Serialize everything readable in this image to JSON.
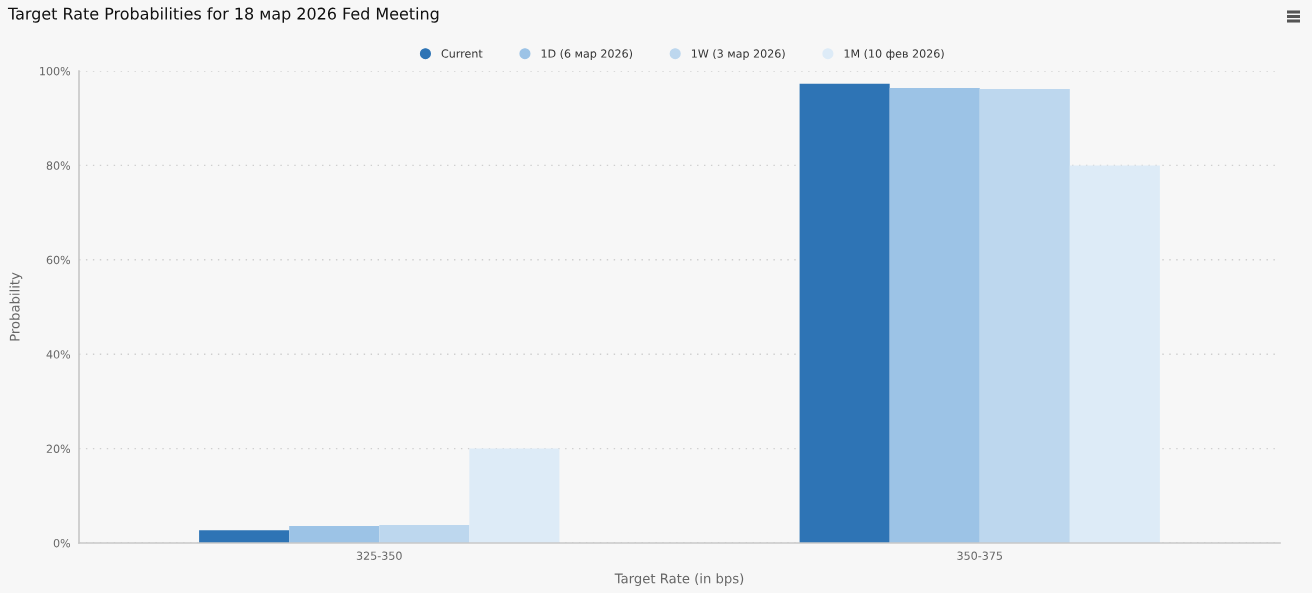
{
  "chart_data": {
    "type": "bar",
    "title": "Target Rate Probabilities for 18 мар 2026 Fed Meeting",
    "xlabel": "Target Rate (in bps)",
    "ylabel": "Probability",
    "categories": [
      "325-350",
      "350-375"
    ],
    "series": [
      {
        "name": "Current",
        "color": "#2e74b5",
        "values": [
          2.7,
          97.3
        ]
      },
      {
        "name": "1D (6 мар 2026)",
        "color": "#9cc3e6",
        "values": [
          3.6,
          96.4
        ]
      },
      {
        "name": "1W (3 мар 2026)",
        "color": "#bdd7ee",
        "values": [
          3.8,
          96.2
        ]
      },
      {
        "name": "1M (10 фев 2026)",
        "color": "#ddebf7",
        "values": [
          20,
          80
        ]
      }
    ],
    "ylim": [
      0,
      100
    ],
    "yticks": [
      {
        "value": 0,
        "label": "0%"
      },
      {
        "value": 20,
        "label": "20%"
      },
      {
        "value": 40,
        "label": "40%"
      },
      {
        "value": 60,
        "label": "60%"
      },
      {
        "value": 80,
        "label": "80%"
      },
      {
        "value": 100,
        "label": "100%"
      }
    ],
    "grid": "y",
    "legend": "top"
  }
}
